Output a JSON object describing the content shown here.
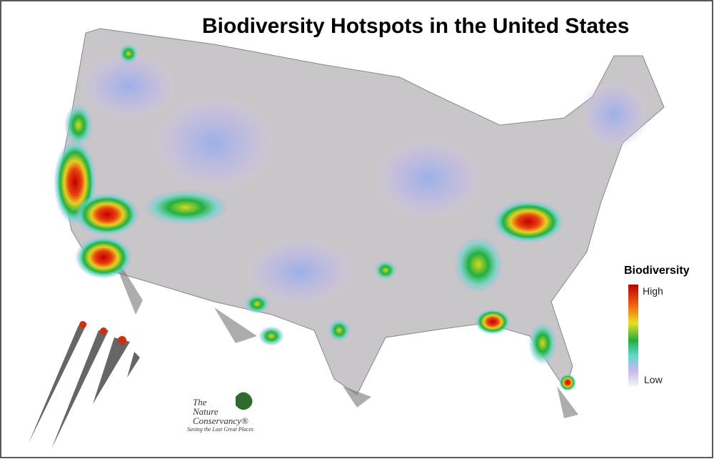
{
  "title": "Biodiversity Hotspots in the United States",
  "legend": {
    "title": "Biodiversity",
    "high": "High",
    "low": "Low"
  },
  "logo": {
    "line1": "The",
    "line2": "Nature",
    "line3": "Conservancy®",
    "tagline": "Saving the Last Great Places"
  }
}
